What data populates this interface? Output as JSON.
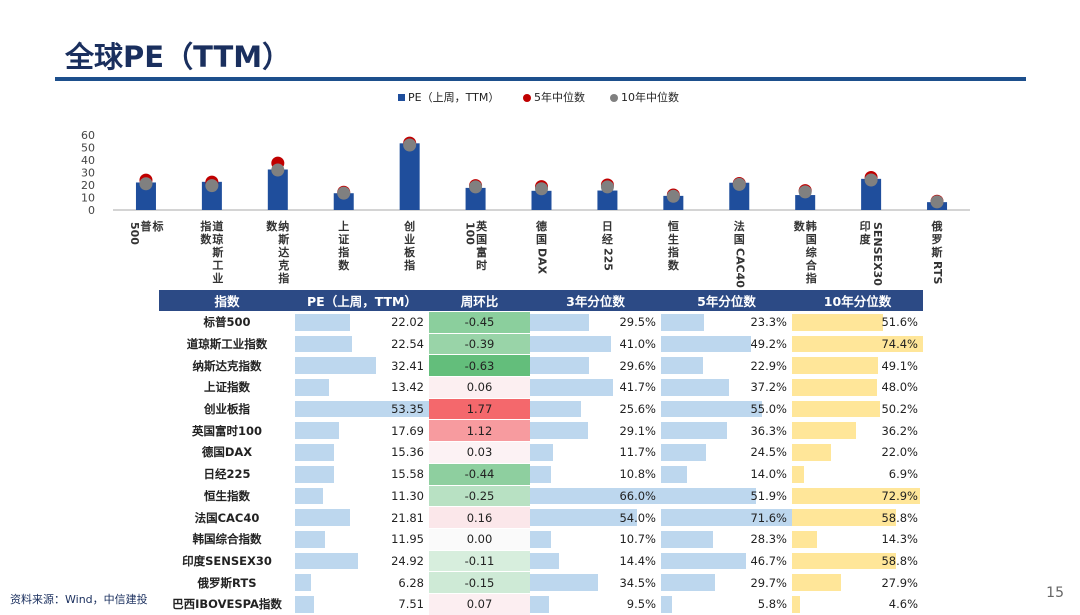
{
  "title": "全球PE（TTM）",
  "source": "资料来源：Wind，中信建投",
  "page_number": "15",
  "colors": {
    "bar": "#1f4e9c",
    "dot5": "#c00000",
    "dot10": "#808080",
    "header_bg": "#2c4a85",
    "blue_bar": "#bdd7ee",
    "yellow_bar": "#ffe699",
    "chg_pos": "#f4686c",
    "chg_neg": "#63be7b"
  },
  "chart_data": {
    "type": "bar",
    "legend": [
      "PE（上周，TTM）",
      "5年中位数",
      "10年中位数"
    ],
    "legend_position": "top",
    "ylim": [
      0,
      60
    ],
    "yticks": [
      0,
      10,
      20,
      30,
      40,
      50,
      60
    ],
    "categories": [
      "标普500",
      "道琼斯工业指数",
      "纳斯达克指数",
      "上证指数",
      "创业板指",
      "英国富时100",
      "德国DAX",
      "日经225",
      "恒生指数",
      "法国CAC40",
      "韩国综合指数",
      "印度SENSEX30",
      "俄罗斯RTS"
    ],
    "category_labels": [
      [
        "标",
        "普",
        "500"
      ],
      [
        "道琼斯工业",
        "指数"
      ],
      [
        "纳斯达克指",
        "数"
      ],
      [
        "上证指数"
      ],
      [
        "创业板指"
      ],
      [
        "英国富时",
        "100"
      ],
      [
        "德国DAX"
      ],
      [
        "日经225"
      ],
      [
        "恒生指数"
      ],
      [
        "法国CAC40"
      ],
      [
        "韩国综合指",
        "数"
      ],
      [
        "SENSEX30",
        "印度"
      ],
      [
        "俄罗斯RTS"
      ]
    ],
    "series": [
      {
        "name": "PE（上周，TTM）",
        "values": [
          22.02,
          22.54,
          32.41,
          13.42,
          53.35,
          17.69,
          15.36,
          15.58,
          11.3,
          21.81,
          11.95,
          24.92,
          6.28
        ]
      },
      {
        "name": "5年中位数",
        "values": [
          23.9,
          22.3,
          37.5,
          14.2,
          53.5,
          19.5,
          18.7,
          20.0,
          12.0,
          21.2,
          15.5,
          26.0,
          7.0
        ]
      },
      {
        "name": "10年中位数",
        "values": [
          21.0,
          19.5,
          32.0,
          13.5,
          52.0,
          18.5,
          17.0,
          18.5,
          11.0,
          20.5,
          14.5,
          24.0,
          6.5
        ]
      }
    ]
  },
  "table": {
    "headers": [
      "指数",
      "PE（上周，TTM）",
      "周环比",
      "3年分位数",
      "5年分位数",
      "10年分位数"
    ],
    "rows": [
      {
        "name": "标普500",
        "pe": "22.02",
        "pe_v": 22.02,
        "chg": "-0.45",
        "chg_v": -0.45,
        "p3": "29.5%",
        "p3_v": 29.5,
        "p5": "23.3%",
        "p5_v": 23.3,
        "p10": "51.6%",
        "p10_v": 51.6
      },
      {
        "name": "道琼斯工业指数",
        "pe": "22.54",
        "pe_v": 22.54,
        "chg": "-0.39",
        "chg_v": -0.39,
        "p3": "41.0%",
        "p3_v": 41.0,
        "p5": "49.2%",
        "p5_v": 49.2,
        "p10": "74.4%",
        "p10_v": 74.4
      },
      {
        "name": "纳斯达克指数",
        "pe": "32.41",
        "pe_v": 32.41,
        "chg": "-0.63",
        "chg_v": -0.63,
        "p3": "29.6%",
        "p3_v": 29.6,
        "p5": "22.9%",
        "p5_v": 22.9,
        "p10": "49.1%",
        "p10_v": 49.1
      },
      {
        "name": "上证指数",
        "pe": "13.42",
        "pe_v": 13.42,
        "chg": "0.06",
        "chg_v": 0.06,
        "p3": "41.7%",
        "p3_v": 41.7,
        "p5": "37.2%",
        "p5_v": 37.2,
        "p10": "48.0%",
        "p10_v": 48.0
      },
      {
        "name": "创业板指",
        "pe": "53.35",
        "pe_v": 53.35,
        "chg": "1.77",
        "chg_v": 1.77,
        "p3": "25.6%",
        "p3_v": 25.6,
        "p5": "55.0%",
        "p5_v": 55.0,
        "p10": "50.2%",
        "p10_v": 50.2
      },
      {
        "name": "英国富时100",
        "pe": "17.69",
        "pe_v": 17.69,
        "chg": "1.12",
        "chg_v": 1.12,
        "p3": "29.1%",
        "p3_v": 29.1,
        "p5": "36.3%",
        "p5_v": 36.3,
        "p10": "36.2%",
        "p10_v": 36.2
      },
      {
        "name": "德国DAX",
        "pe": "15.36",
        "pe_v": 15.36,
        "chg": "0.03",
        "chg_v": 0.03,
        "p3": "11.7%",
        "p3_v": 11.7,
        "p5": "24.5%",
        "p5_v": 24.5,
        "p10": "22.0%",
        "p10_v": 22.0
      },
      {
        "name": "日经225",
        "pe": "15.58",
        "pe_v": 15.58,
        "chg": "-0.44",
        "chg_v": -0.44,
        "p3": "10.8%",
        "p3_v": 10.8,
        "p5": "14.0%",
        "p5_v": 14.0,
        "p10": "6.9%",
        "p10_v": 6.9
      },
      {
        "name": "恒生指数",
        "pe": "11.30",
        "pe_v": 11.3,
        "chg": "-0.25",
        "chg_v": -0.25,
        "p3": "66.0%",
        "p3_v": 66.0,
        "p5": "51.9%",
        "p5_v": 51.9,
        "p10": "72.9%",
        "p10_v": 72.9
      },
      {
        "name": "法国CAC40",
        "pe": "21.81",
        "pe_v": 21.81,
        "chg": "0.16",
        "chg_v": 0.16,
        "p3": "54.0%",
        "p3_v": 54.0,
        "p5": "71.6%",
        "p5_v": 71.6,
        "p10": "58.8%",
        "p10_v": 58.8
      },
      {
        "name": "韩国综合指数",
        "pe": "11.95",
        "pe_v": 11.95,
        "chg": "0.00",
        "chg_v": 0.0,
        "p3": "10.7%",
        "p3_v": 10.7,
        "p5": "28.3%",
        "p5_v": 28.3,
        "p10": "14.3%",
        "p10_v": 14.3
      },
      {
        "name": "印度SENSEX30",
        "pe": "24.92",
        "pe_v": 24.92,
        "chg": "-0.11",
        "chg_v": -0.11,
        "p3": "14.4%",
        "p3_v": 14.4,
        "p5": "46.7%",
        "p5_v": 46.7,
        "p10": "58.8%",
        "p10_v": 58.8
      },
      {
        "name": "俄罗斯RTS",
        "pe": "6.28",
        "pe_v": 6.28,
        "chg": "-0.15",
        "chg_v": -0.15,
        "p3": "34.5%",
        "p3_v": 34.5,
        "p5": "29.7%",
        "p5_v": 29.7,
        "p10": "27.9%",
        "p10_v": 27.9
      },
      {
        "name": "巴西IBOVESPA指数",
        "pe": "7.51",
        "pe_v": 7.51,
        "chg": "0.07",
        "chg_v": 0.07,
        "p3": "9.5%",
        "p3_v": 9.5,
        "p5": "5.8%",
        "p5_v": 5.8,
        "p10": "4.6%",
        "p10_v": 4.6
      }
    ]
  }
}
